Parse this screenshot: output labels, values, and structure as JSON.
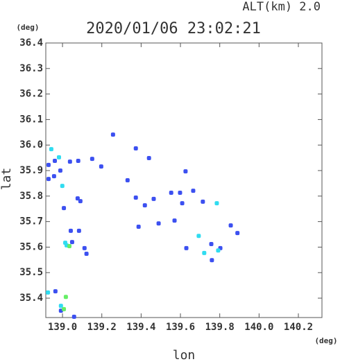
{
  "chart_data": {
    "type": "scatter",
    "title": "2020/01/06 23:02:21",
    "subtitle": "ALT(km) 2.0",
    "x_label": "lon",
    "y_label": "lat",
    "x_unit": "(deg)",
    "y_unit": "(deg)",
    "xlim": [
      138.915,
      140.32
    ],
    "ylim": [
      35.324,
      36.4
    ],
    "xticks": [
      {
        "value": 139,
        "label": "139.0"
      },
      139.2,
      139.4,
      139.6,
      139.8,
      {
        "value": 140,
        "label": "140.0"
      },
      140.2
    ],
    "yticks": [
      35.4,
      35.5,
      35.6,
      35.7,
      35.8,
      35.9,
      {
        "value": 36,
        "label": "36.0"
      },
      36.1,
      36.2,
      36.3,
      36.4
    ],
    "series": [
      {
        "color": "#3c50f0",
        "x": [
          139.373,
          139.257,
          139.44,
          139.151,
          139.197,
          139.331,
          139.626,
          139.598,
          139.553,
          139.665,
          139.464,
          139.373,
          139.419,
          139.609,
          139.714,
          139.57,
          139.489,
          139.387,
          139.63,
          139.757,
          139.803,
          139.856,
          139.89,
          139.76,
          139.08,
          139.038,
          138.989,
          138.957,
          138.929,
          139.007,
          139.077,
          139.091,
          139.042,
          139.084,
          139.049,
          139.112,
          139.122,
          139.059,
          138.992,
          138.964,
          138.961,
          138.929
        ],
        "y": [
          35.987,
          36.041,
          35.949,
          35.946,
          35.916,
          35.862,
          35.897,
          35.813,
          35.813,
          35.821,
          35.789,
          35.794,
          35.764,
          35.772,
          35.778,
          35.704,
          35.693,
          35.68,
          35.596,
          35.612,
          35.596,
          35.685,
          35.655,
          35.549,
          35.938,
          35.935,
          35.9,
          35.878,
          35.867,
          35.753,
          35.791,
          35.78,
          35.664,
          35.664,
          35.62,
          35.596,
          35.574,
          35.327,
          35.351,
          35.427,
          35.938,
          35.922
        ]
      },
      {
        "color": "#30dcf0",
        "x": [
          138.943,
          138.982,
          138.999,
          139.021,
          139.014,
          139.792,
          139.721,
          138.926,
          138.992,
          139.693,
          139.785
        ],
        "y": [
          35.984,
          35.952,
          35.84,
          35.607,
          35.617,
          35.587,
          35.577,
          35.422,
          35.37,
          35.644,
          35.772
        ]
      },
      {
        "color": "#66ee66",
        "x": [
          139.017,
          139.007,
          139.035
        ],
        "y": [
          35.405,
          35.357,
          35.604
        ]
      }
    ]
  }
}
